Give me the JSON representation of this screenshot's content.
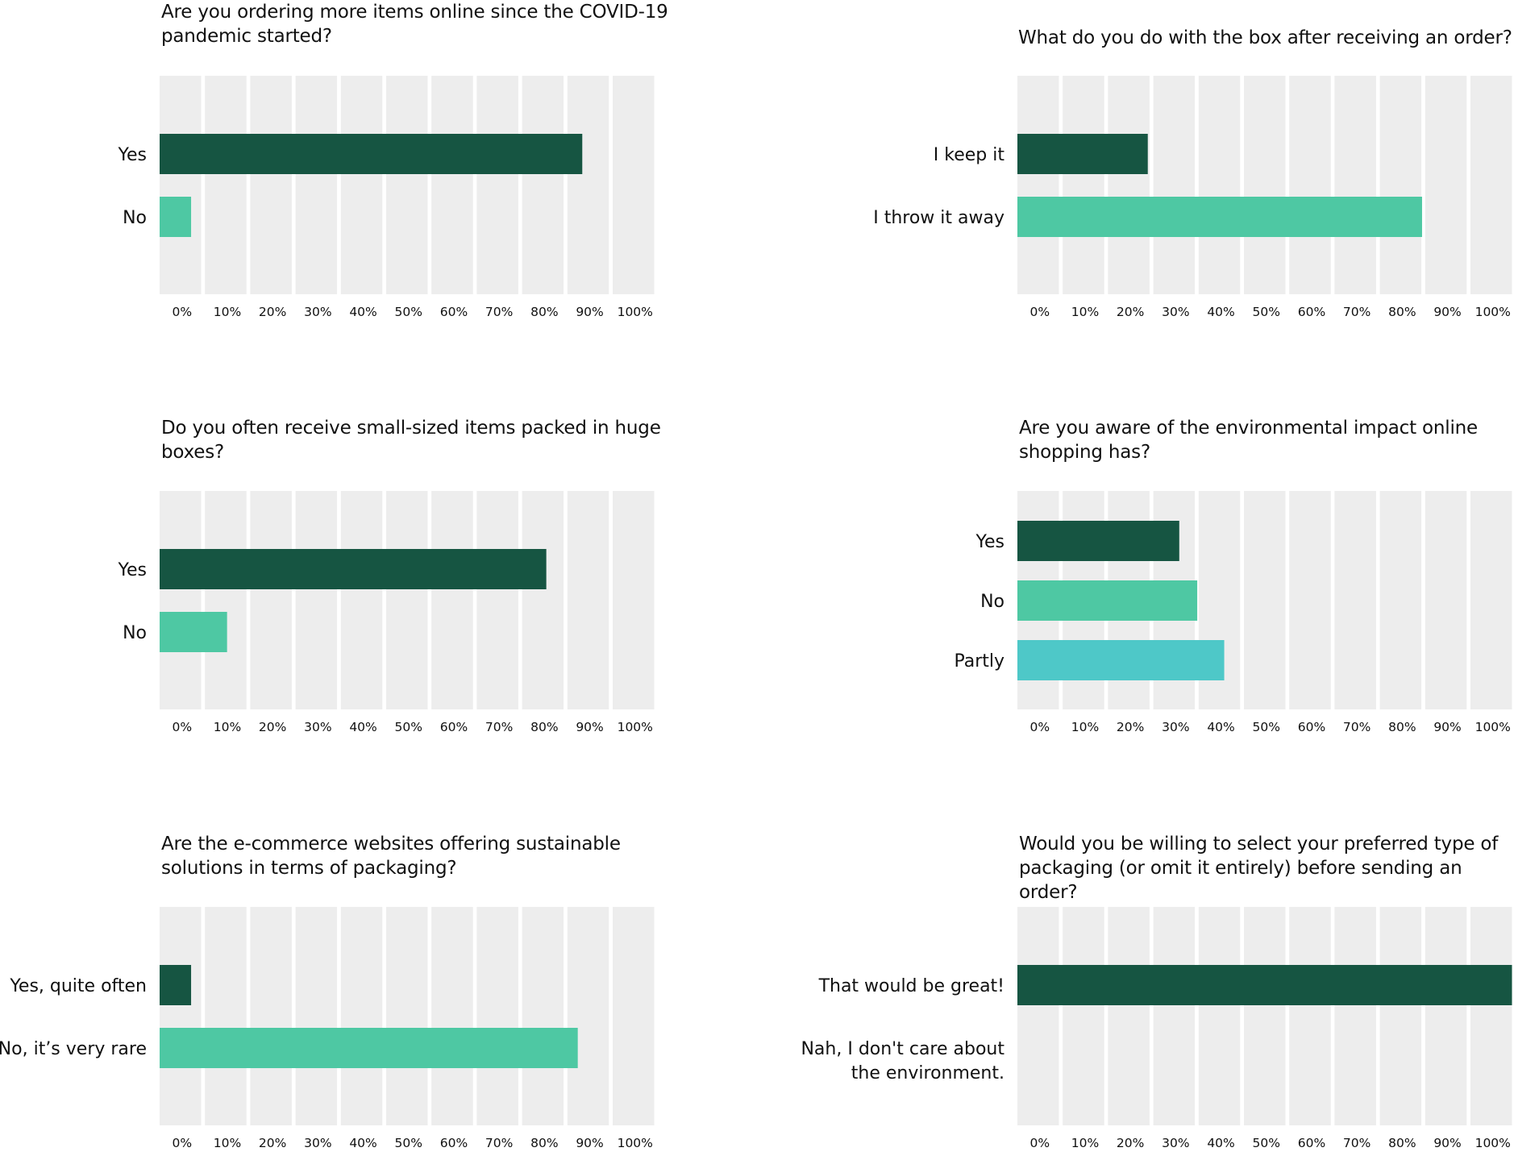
{
  "colors": {
    "column": "#ededed",
    "series": [
      "#165542",
      "#4ec8a3",
      "#4ec8c8"
    ],
    "text": "#111111"
  },
  "tick_labels": [
    "0%",
    "10%",
    "20%",
    "30%",
    "40%",
    "50%",
    "60%",
    "70%",
    "80%",
    "90%",
    "100%"
  ],
  "chart_data": [
    {
      "type": "bar",
      "orientation": "horizontal",
      "title": "Are you ordering more items online since the COVID-19\npandemic started?",
      "categories": [
        "Yes",
        "No"
      ],
      "values": [
        94,
        7
      ],
      "xlim": [
        0,
        110
      ],
      "xlabel": "",
      "ylabel": ""
    },
    {
      "type": "bar",
      "orientation": "horizontal",
      "title": "What do you do with the box after receiving an order?",
      "categories": [
        "I keep it",
        "I throw it away"
      ],
      "values": [
        29,
        90
      ],
      "xlim": [
        0,
        110
      ],
      "xlabel": "",
      "ylabel": ""
    },
    {
      "type": "bar",
      "orientation": "horizontal",
      "title": "Do you often receive small-sized items packed in huge\nboxes?",
      "categories": [
        "Yes",
        "No"
      ],
      "values": [
        86,
        15
      ],
      "xlim": [
        0,
        110
      ],
      "xlabel": "",
      "ylabel": ""
    },
    {
      "type": "bar",
      "orientation": "horizontal",
      "title": "Are you aware of the environmental impact online\nshopping has?",
      "categories": [
        "Yes",
        "No",
        "Partly"
      ],
      "values": [
        36,
        40,
        46
      ],
      "xlim": [
        0,
        110
      ],
      "xlabel": "",
      "ylabel": ""
    },
    {
      "type": "bar",
      "orientation": "horizontal",
      "title": "Are the e-commerce websites offering sustainable\nsolutions in terms of packaging?",
      "categories": [
        "Yes, quite often",
        "No, it’s very rare"
      ],
      "values": [
        7,
        93
      ],
      "xlim": [
        0,
        110
      ],
      "xlabel": "",
      "ylabel": ""
    },
    {
      "type": "bar",
      "orientation": "horizontal",
      "title": "Would you be willing to select your preferred type of\npackaging (or omit it entirely) before sending an order?",
      "categories": [
        "That would be great!",
        "Nah, I don't care about\nthe environment."
      ],
      "values": [
        110,
        0
      ],
      "xlim": [
        0,
        110
      ],
      "xlabel": "",
      "ylabel": ""
    }
  ]
}
